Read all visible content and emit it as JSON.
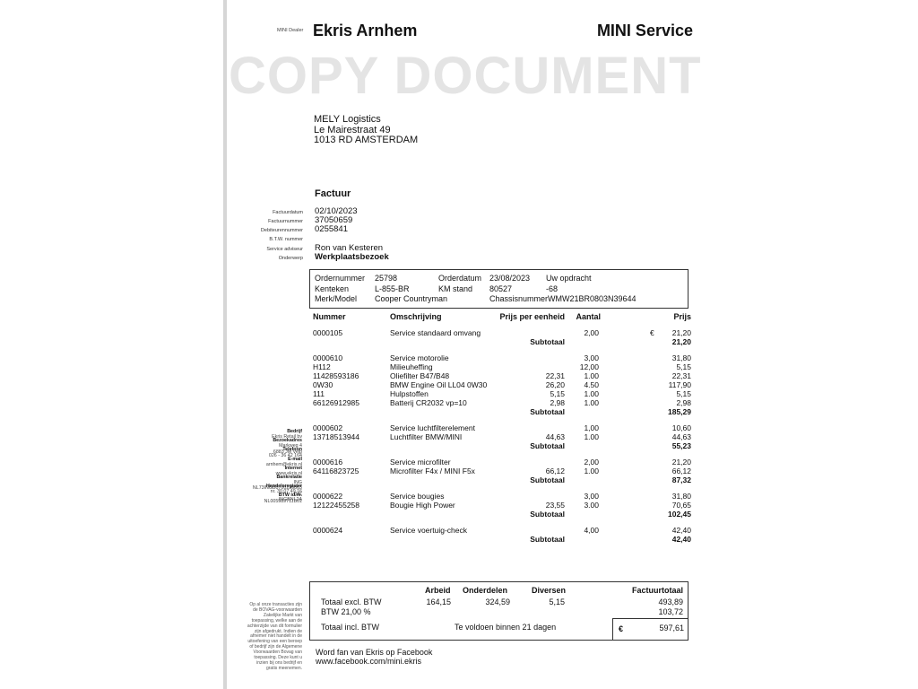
{
  "header": {
    "dealer_label": "MINI Dealer",
    "dealer_name": "Ekris Arnhem",
    "brand": "MINI Service"
  },
  "watermark": "COPY DOCUMENT",
  "address": [
    "MELY Logistics",
    "Le Mairestraat 49",
    "1013 RD  AMSTERDAM"
  ],
  "doc_title": "Factuur",
  "meta": [
    {
      "label": "Factuurdatum",
      "value": "02/10/2023"
    },
    {
      "label": "Factuurnummer",
      "value": "37050659"
    },
    {
      "label": "Debiteurennummer",
      "value": "0255841"
    },
    {
      "label": "B.T.W. nummer",
      "value": ""
    },
    {
      "label": "Service adviseur",
      "value": "Ron van Kesteren"
    },
    {
      "label": "Onderwerp",
      "value": "Werkplaatsbezoek"
    }
  ],
  "order": {
    "ordernummer_label": "Ordernummer",
    "ordernummer": "25798",
    "orderdatum_label": "Orderdatum",
    "orderdatum": "23/08/2023",
    "uw_opdracht_label": "Uw opdracht",
    "kenteken_label": "Kenteken",
    "kenteken": "L-855-BR",
    "km_label": "KM stand",
    "km": "80527",
    "uw_opdracht": "-68",
    "model_label": "Merk/Model",
    "model": "Cooper Countryman",
    "chassis_label": "Chassisnummer",
    "chassis": "WMW21BR0803N39644"
  },
  "columns": {
    "nummer": "Nummer",
    "omschrijving": "Omschrijving",
    "prijs_eenheid": "Prijs per eenheid",
    "aantal": "Aantal",
    "prijs": "Prijs"
  },
  "currency": "€",
  "subtotal_label": "Subtotaal",
  "groups": [
    {
      "rows": [
        [
          "0000105",
          "Service standaard omvang",
          "",
          "2,00",
          "21,20"
        ]
      ],
      "subtotal": "21,20"
    },
    {
      "rows": [
        [
          "0000610",
          "Service motorolie",
          "",
          "3,00",
          "31,80"
        ],
        [
          "H112",
          "Milieuheffing",
          "",
          "12,00",
          "5,15"
        ],
        [
          "11428593186",
          "Oliefilter B47/B48",
          "22,31",
          "1.00",
          "22,31"
        ],
        [
          "0W30",
          "BMW Engine Oil LL04 0W30",
          "26,20",
          "4.50",
          "117,90"
        ],
        [
          "111",
          "Hulpstoffen",
          "5,15",
          "1.00",
          "5,15"
        ],
        [
          "66126912985",
          "Batterij CR2032 vp=10",
          "2,98",
          "1.00",
          "2,98"
        ]
      ],
      "subtotal": "185,29"
    },
    {
      "rows": [
        [
          "0000602",
          "Service luchtfilterelement",
          "",
          "1,00",
          "10,60"
        ],
        [
          "13718513944",
          "Luchtfilter BMW/MINI",
          "44,63",
          "1.00",
          "44,63"
        ]
      ],
      "subtotal": "55,23"
    },
    {
      "rows": [
        [
          "0000616",
          "Service microfilter",
          "",
          "2,00",
          "21,20"
        ],
        [
          "64116823725",
          "Microfilter F4x / MINI F5x",
          "66,12",
          "1.00",
          "66,12"
        ]
      ],
      "subtotal": "87,32"
    },
    {
      "rows": [
        [
          "0000622",
          "Service bougies",
          "",
          "3,00",
          "31,80"
        ],
        [
          "12122455258",
          "Bougie High Power",
          "23,55",
          "3.00",
          "70,65"
        ]
      ],
      "subtotal": "102,45"
    },
    {
      "rows": [
        [
          "0000624",
          "Service voertuig-check",
          "",
          "4,00",
          "42,40"
        ]
      ],
      "subtotal": "42,40"
    }
  ],
  "totals": {
    "arbeid_label": "Arbeid",
    "onderdelen_label": "Onderdelen",
    "diversen_label": "Diversen",
    "factuurtotaal_label": "Factuurtotaal",
    "excl_label": "Totaal excl. BTW",
    "arbeid": "164,15",
    "onderdelen": "324,59",
    "diversen": "5,15",
    "excl_total": "493,89",
    "btw_label": "BTW 21,00 %",
    "btw": "103,72",
    "incl_label": "Totaal incl. BTW",
    "terms": "Te voldoen binnen 21 dagen",
    "incl_total": "597,61"
  },
  "footer": [
    "Word fan van Ekris op Facebook",
    "www.facebook.com/mini.ekris"
  ],
  "sidebar": [
    {
      "title": "Bedrijf",
      "lines": [
        "Ekris Retail bv"
      ]
    },
    {
      "title": "Bezoekadres",
      "lines": [
        "Markweg 4",
        "6883 JM Velp"
      ]
    },
    {
      "title": "Telefoon",
      "lines": [
        "026 - 36 42 164"
      ]
    },
    {
      "title": "E-mail",
      "lines": [
        "arnhem@ekris.nl"
      ]
    },
    {
      "title": "Internet",
      "lines": [
        "www.ekris.nl"
      ]
    },
    {
      "title": "Bankrelatie",
      "lines": [
        "ING",
        "NL73INGB0700239863",
        "BIC",
        "INGBNL2A"
      ]
    },
    {
      "title": "Handelsregister",
      "lines": [
        "nr. 30 07 49 16"
      ]
    },
    {
      "title": "BTW id.nr.",
      "lines": [
        "NL005989711B01"
      ]
    }
  ],
  "disclaimer": "Op al onze transacties zijn de BOVAG-voorwaarden Zakelijke Markt van toepassing, welke aan de achterzijde van dit formulier zijn afgedrukt. Indien de afnemer niet handelt in de uitoefening van een beroep of bedrijf zijn de Algemene Voorwaarden Bovag van toepassing. Deze kunt u inzien bij ons bedrijf en gratis meenemen."
}
